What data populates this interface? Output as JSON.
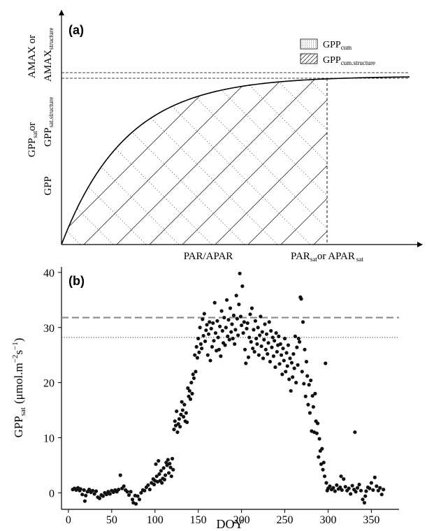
{
  "chart_data": [
    {
      "type": "line",
      "panel_label": "(a)",
      "xlabel": "PAR/APAR",
      "xsat_label": {
        "main": "PAR",
        "sub": "sat",
        "mid": "or APAR",
        "sub2": "sat"
      },
      "ylabels": {
        "gpp": "GPP",
        "gppsat_main": "GPP",
        "gppsat_sub": "sat",
        "gppsat_or": "or",
        "gppsatstruct_main": "GPP",
        "gppsatstruct_sub": "sat.structure",
        "amax": "AMAX or",
        "amaxstruct_main": "AMAX",
        "amaxstruct_sub": "structure"
      },
      "legend": [
        {
          "main": "GPP",
          "sub": "cum",
          "pattern": "dots"
        },
        {
          "main": "GPP",
          "sub": "cum.structure",
          "pattern": "hatch"
        }
      ],
      "colors": {
        "line": "#000000",
        "hatch": "#333333"
      }
    },
    {
      "type": "scatter",
      "panel_label": "(b)",
      "xlabel": "DOY",
      "ylabel": {
        "main": "GPP",
        "sub": "sat",
        "unit_pre": "(μmol.m",
        "sup1": "−2",
        "unit_mid": "s",
        "sup2": "−1",
        "unit_post": ")"
      },
      "xlim": [
        -8,
        382
      ],
      "ylim": [
        -3,
        41
      ],
      "xticks": [
        "0",
        "50",
        "100",
        "150",
        "200",
        "250",
        "300",
        "350"
      ],
      "xtick_values": [
        0,
        50,
        100,
        150,
        200,
        250,
        300,
        350
      ],
      "yticks": [
        "0",
        "10",
        "20",
        "30",
        "40"
      ],
      "ytick_values": [
        0,
        10,
        20,
        30,
        40
      ],
      "hlines": [
        {
          "y": 31.8,
          "style": "dashed",
          "color": "#8a8a8a"
        },
        {
          "y": 28.2,
          "style": "dotted",
          "color": "#555555"
        }
      ],
      "colors": {
        "points": "#111111"
      },
      "points": [
        [
          5,
          0.6
        ],
        [
          7,
          0.8
        ],
        [
          9,
          0.5
        ],
        [
          11,
          0.9
        ],
        [
          13,
          0.4
        ],
        [
          14,
          0.7
        ],
        [
          16,
          -0.3
        ],
        [
          18,
          0.5
        ],
        [
          19,
          -1.5
        ],
        [
          20,
          -0.5
        ],
        [
          22,
          0.2
        ],
        [
          24,
          0.6
        ],
        [
          26,
          0.1
        ],
        [
          28,
          0.4
        ],
        [
          30,
          -0.2
        ],
        [
          32,
          0.3
        ],
        [
          34,
          -0.8
        ],
        [
          36,
          -1.0
        ],
        [
          38,
          -0.4
        ],
        [
          40,
          -0.6
        ],
        [
          42,
          0.0
        ],
        [
          44,
          -0.3
        ],
        [
          46,
          0.2
        ],
        [
          48,
          -0.2
        ],
        [
          50,
          0.4
        ],
        [
          52,
          0.1
        ],
        [
          54,
          0.5
        ],
        [
          56,
          0.2
        ],
        [
          58,
          0.6
        ],
        [
          60,
          3.2
        ],
        [
          62,
          0.8
        ],
        [
          64,
          1.2
        ],
        [
          66,
          0.5
        ],
        [
          68,
          0.2
        ],
        [
          70,
          -0.4
        ],
        [
          72,
          0.2
        ],
        [
          74,
          -1.2
        ],
        [
          75,
          -1.8
        ],
        [
          77,
          -0.5
        ],
        [
          78,
          -2.0
        ],
        [
          80,
          -0.6
        ],
        [
          82,
          -1.2
        ],
        [
          84,
          0.0
        ],
        [
          86,
          0.5
        ],
        [
          88,
          0.4
        ],
        [
          90,
          1.0
        ],
        [
          92,
          1.4
        ],
        [
          94,
          0.6
        ],
        [
          96,
          1.8
        ],
        [
          98,
          2.5
        ],
        [
          99,
          1.5
        ],
        [
          100,
          2.2
        ],
        [
          101,
          5.2
        ],
        [
          102,
          3.0
        ],
        [
          103,
          2.0
        ],
        [
          104,
          5.8
        ],
        [
          105,
          3.4
        ],
        [
          106,
          2.2
        ],
        [
          107,
          4.0
        ],
        [
          108,
          1.8
        ],
        [
          109,
          2.6
        ],
        [
          110,
          4.5
        ],
        [
          111,
          2.4
        ],
        [
          112,
          3.2
        ],
        [
          113,
          5.5
        ],
        [
          114,
          5.0
        ],
        [
          115,
          6.0
        ],
        [
          116,
          3.6
        ],
        [
          117,
          5.3
        ],
        [
          118,
          4.6
        ],
        [
          119,
          3.0
        ],
        [
          120,
          6.2
        ],
        [
          121,
          4.2
        ],
        [
          122,
          11.5
        ],
        [
          123,
          13.0
        ],
        [
          124,
          12.2
        ],
        [
          125,
          14.8
        ],
        [
          126,
          11.0
        ],
        [
          127,
          12.5
        ],
        [
          128,
          13.4
        ],
        [
          129,
          12.0
        ],
        [
          130,
          14.2
        ],
        [
          131,
          16.5
        ],
        [
          132,
          15.0
        ],
        [
          133,
          13.8
        ],
        [
          134,
          16.0
        ],
        [
          135,
          13.0
        ],
        [
          136,
          14.5
        ],
        [
          137,
          12.8
        ],
        [
          138,
          19.0
        ],
        [
          139,
          17.5
        ],
        [
          140,
          18.5
        ],
        [
          141,
          17.0
        ],
        [
          142,
          20.0
        ],
        [
          143,
          18.0
        ],
        [
          144,
          21.5
        ],
        [
          145,
          20.8
        ],
        [
          146,
          25.0
        ],
        [
          147,
          22.0
        ],
        [
          148,
          26.5
        ],
        [
          149,
          24.5
        ],
        [
          150,
          28.0
        ],
        [
          151,
          25.5
        ],
        [
          152,
          30.0
        ],
        [
          153,
          27.0
        ],
        [
          154,
          26.2
        ],
        [
          155,
          31.5
        ],
        [
          156,
          28.5
        ],
        [
          157,
          32.5
        ],
        [
          158,
          27.5
        ],
        [
          159,
          29.5
        ],
        [
          160,
          30.5
        ],
        [
          161,
          25.0
        ],
        [
          162,
          28.8
        ],
        [
          163,
          31.0
        ],
        [
          164,
          24.0
        ],
        [
          165,
          29.8
        ],
        [
          166,
          26.5
        ],
        [
          167,
          30.8
        ],
        [
          168,
          27.6
        ],
        [
          169,
          34.5
        ],
        [
          170,
          29.0
        ],
        [
          171,
          25.8
        ],
        [
          172,
          31.2
        ],
        [
          173,
          28.2
        ],
        [
          174,
          26.0
        ],
        [
          175,
          30.2
        ],
        [
          176,
          24.8
        ],
        [
          177,
          33.0
        ],
        [
          178,
          29.4
        ],
        [
          179,
          27.2
        ],
        [
          180,
          31.8
        ],
        [
          181,
          26.8
        ],
        [
          182,
          30.0
        ],
        [
          183,
          35.0
        ],
        [
          184,
          28.4
        ],
        [
          185,
          31.4
        ],
        [
          186,
          27.8
        ],
        [
          187,
          33.5
        ],
        [
          188,
          29.2
        ],
        [
          189,
          30.6
        ],
        [
          190,
          28.0
        ],
        [
          191,
          32.2
        ],
        [
          192,
          27.0
        ],
        [
          193,
          29.6
        ],
        [
          194,
          35.8
        ],
        [
          195,
          31.6
        ],
        [
          196,
          28.6
        ],
        [
          197,
          34.2
        ],
        [
          198,
          39.8
        ],
        [
          199,
          32.0
        ],
        [
          200,
          30.4
        ],
        [
          201,
          37.5
        ],
        [
          202,
          29.0
        ],
        [
          203,
          31.0
        ],
        [
          204,
          26.0
        ],
        [
          205,
          23.5
        ],
        [
          206,
          29.8
        ],
        [
          207,
          30.8
        ],
        [
          208,
          24.6
        ],
        [
          209,
          28.2
        ],
        [
          210,
          32.4
        ],
        [
          211,
          27.4
        ],
        [
          212,
          33.5
        ],
        [
          213,
          26.2
        ],
        [
          214,
          29.6
        ],
        [
          215,
          25.6
        ],
        [
          216,
          31.2
        ],
        [
          217,
          28.0
        ],
        [
          218,
          27.0
        ],
        [
          219,
          30.0
        ],
        [
          220,
          25.0
        ],
        [
          221,
          28.6
        ],
        [
          222,
          32.0
        ],
        [
          223,
          26.6
        ],
        [
          224,
          29.2
        ],
        [
          225,
          24.4
        ],
        [
          226,
          27.8
        ],
        [
          227,
          30.6
        ],
        [
          228,
          26.0
        ],
        [
          229,
          28.8
        ],
        [
          230,
          25.2
        ],
        [
          231,
          27.2
        ],
        [
          232,
          31.0
        ],
        [
          233,
          23.8
        ],
        [
          234,
          29.4
        ],
        [
          235,
          26.4
        ],
        [
          236,
          28.2
        ],
        [
          237,
          24.8
        ],
        [
          238,
          27.6
        ],
        [
          239,
          22.8
        ],
        [
          240,
          29.0
        ],
        [
          241,
          25.6
        ],
        [
          242,
          26.8
        ],
        [
          243,
          28.4
        ],
        [
          244,
          23.4
        ],
        [
          245,
          27.0
        ],
        [
          246,
          25.0
        ],
        [
          247,
          21.5
        ],
        [
          248,
          26.2
        ],
        [
          249,
          24.0
        ],
        [
          250,
          28.0
        ],
        [
          251,
          22.0
        ],
        [
          252,
          25.4
        ],
        [
          253,
          23.0
        ],
        [
          254,
          26.8
        ],
        [
          255,
          20.6
        ],
        [
          256,
          24.4
        ],
        [
          257,
          18.5
        ],
        [
          258,
          23.6
        ],
        [
          259,
          21.0
        ],
        [
          260,
          25.2
        ],
        [
          261,
          22.6
        ],
        [
          262,
          28.4
        ],
        [
          263,
          20.0
        ],
        [
          264,
          26.4
        ],
        [
          265,
          23.2
        ],
        [
          266,
          28.0
        ],
        [
          267,
          27.4
        ],
        [
          268,
          35.5
        ],
        [
          269,
          35.2
        ],
        [
          270,
          22.0
        ],
        [
          271,
          31.0
        ],
        [
          272,
          19.8
        ],
        [
          273,
          26.0
        ],
        [
          274,
          17.5
        ],
        [
          275,
          23.8
        ],
        [
          276,
          21.2
        ],
        [
          277,
          16.0
        ],
        [
          278,
          19.6
        ],
        [
          279,
          14.5
        ],
        [
          280,
          20.4
        ],
        [
          281,
          11.2
        ],
        [
          282,
          17.6
        ],
        [
          283,
          15.6
        ],
        [
          284,
          11.0
        ],
        [
          285,
          18.0
        ],
        [
          286,
          13.0
        ],
        [
          287,
          10.8
        ],
        [
          288,
          12.6
        ],
        [
          289,
          6.5
        ],
        [
          290,
          9.8
        ],
        [
          291,
          7.6
        ],
        [
          292,
          5.2
        ],
        [
          293,
          8.0
        ],
        [
          294,
          4.2
        ],
        [
          295,
          5.5
        ],
        [
          296,
          3.0
        ],
        [
          297,
          23.5
        ],
        [
          298,
          1.8
        ],
        [
          299,
          0.4
        ],
        [
          300,
          0.8
        ],
        [
          302,
          1.2
        ],
        [
          304,
          0.6
        ],
        [
          306,
          0.9
        ],
        [
          308,
          0.3
        ],
        [
          310,
          1.4
        ],
        [
          312,
          0.7
        ],
        [
          314,
          1.0
        ],
        [
          315,
          3.0
        ],
        [
          316,
          0.5
        ],
        [
          318,
          2.5
        ],
        [
          320,
          1.1
        ],
        [
          322,
          0.4
        ],
        [
          324,
          0.8
        ],
        [
          326,
          -0.2
        ],
        [
          328,
          1.3
        ],
        [
          330,
          0.6
        ],
        [
          331,
          11.0
        ],
        [
          332,
          0.2
        ],
        [
          334,
          0.9
        ],
        [
          336,
          1.5
        ],
        [
          338,
          0.4
        ],
        [
          340,
          -1.2
        ],
        [
          342,
          -1.8
        ],
        [
          343,
          -0.6
        ],
        [
          344,
          0.3
        ],
        [
          346,
          1.0
        ],
        [
          348,
          0.8
        ],
        [
          350,
          1.8
        ],
        [
          352,
          0.5
        ],
        [
          354,
          2.8
        ],
        [
          356,
          1.2
        ],
        [
          358,
          0.4
        ],
        [
          360,
          0.9
        ],
        [
          362,
          -0.3
        ],
        [
          364,
          0.6
        ]
      ]
    }
  ]
}
